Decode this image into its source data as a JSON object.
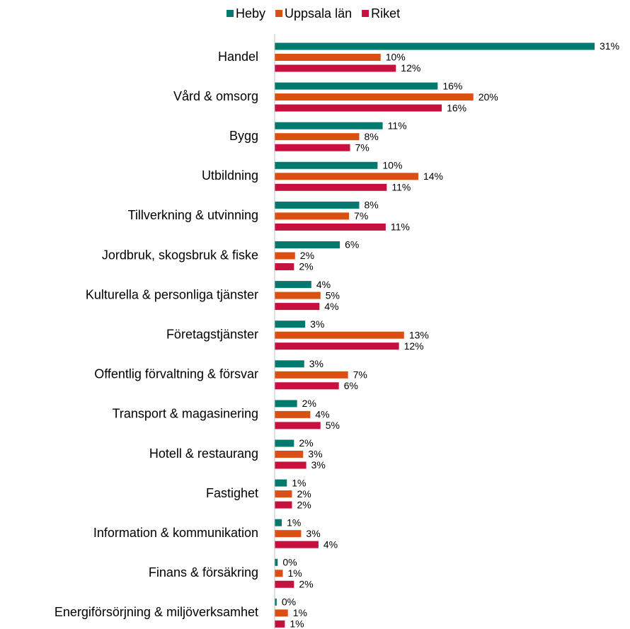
{
  "chart_data": {
    "type": "hbar",
    "categories": [
      "Handel",
      "Vård & omsorg",
      "Bygg",
      "Utbildning",
      "Tillverkning & utvinning",
      "Jordbruk, skogsbruk & fiske",
      "Kulturella & personliga tjänster",
      "Företagstjänster",
      "Offentlig förvaltning & försvar",
      "Transport & magasinering",
      "Hotell & restaurang",
      "Fastighet",
      "Information & kommunikation",
      "Finans & försäkring",
      "Energiförsörjning & miljöverksamhet"
    ],
    "series": [
      {
        "name": "Heby",
        "color": "#007a6e",
        "values": [
          31.4,
          16.0,
          10.6,
          10.1,
          8.3,
          6.4,
          3.6,
          3.0,
          2.9,
          2.2,
          1.9,
          1.2,
          0.7,
          0.3,
          0.2
        ],
        "value_labels": [
          "31%",
          "16%",
          "11%",
          "10%",
          "8%",
          "6%",
          "4%",
          "3%",
          "3%",
          "2%",
          "2%",
          "1%",
          "1%",
          "0%",
          "0%"
        ]
      },
      {
        "name": "Uppsala län",
        "color": "#dc4f12",
        "values": [
          10.4,
          19.5,
          8.3,
          14.1,
          7.3,
          2.0,
          4.5,
          12.7,
          7.2,
          3.5,
          2.8,
          1.7,
          2.6,
          0.8,
          1.3
        ],
        "value_labels": [
          "10%",
          "20%",
          "8%",
          "14%",
          "7%",
          "2%",
          "5%",
          "13%",
          "7%",
          "4%",
          "3%",
          "2%",
          "3%",
          "1%",
          "1%"
        ]
      },
      {
        "name": "Riket",
        "color": "#c8103e",
        "values": [
          11.9,
          16.4,
          7.4,
          11.0,
          10.9,
          1.9,
          4.4,
          12.2,
          6.3,
          4.5,
          3.1,
          1.7,
          4.3,
          1.9,
          1.0
        ],
        "value_labels": [
          "12%",
          "16%",
          "7%",
          "11%",
          "11%",
          "2%",
          "4%",
          "12%",
          "6%",
          "5%",
          "3%",
          "2%",
          "4%",
          "2%",
          "1%"
        ]
      }
    ],
    "legend": "top"
  }
}
